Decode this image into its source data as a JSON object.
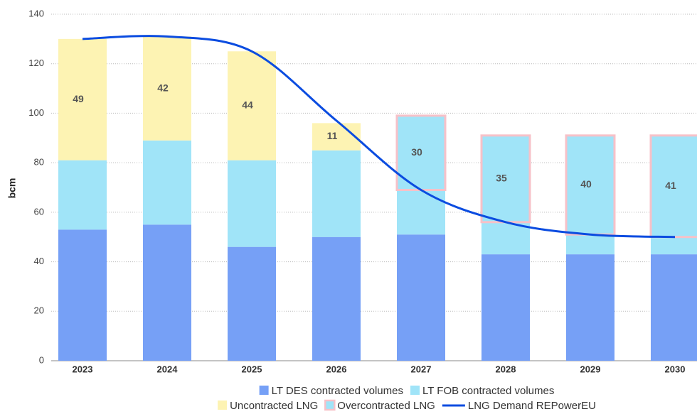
{
  "chart_data": {
    "type": "stacked_bar_line",
    "y_label": "bcm",
    "categories": [
      "2023",
      "2024",
      "2025",
      "2026",
      "2027",
      "2028",
      "2029",
      "2030"
    ],
    "ylim": [
      0,
      140
    ],
    "yticks": [
      0,
      20,
      40,
      60,
      80,
      100,
      120,
      140
    ],
    "grid": true,
    "legend": "bottom",
    "series": [
      {
        "name": "LT DES contracted volumes",
        "type": "bar",
        "color": "#76a0f6",
        "values": [
          53,
          55,
          46,
          50,
          51,
          43,
          43,
          43
        ]
      },
      {
        "name": "LT FOB contracted volumes",
        "type": "bar",
        "color": "#a0e4f8",
        "values": [
          28,
          34,
          35,
          35,
          18,
          13,
          8,
          7
        ]
      },
      {
        "name": "Uncontracted LNG",
        "type": "bar",
        "color": "#fdf3b3",
        "data_labels": true,
        "values": [
          49,
          42,
          44,
          11,
          null,
          null,
          null,
          null
        ]
      },
      {
        "name": "Overcontracted LNG",
        "type": "bar",
        "color": "#a0e4f8",
        "border": "#f7c1c8",
        "data_labels": true,
        "values": [
          null,
          null,
          null,
          null,
          30,
          35,
          40,
          41
        ]
      },
      {
        "name": "LNG Demand REPowerEU",
        "type": "line",
        "color": "#0b4ce0",
        "values": [
          130,
          131,
          125,
          97,
          69,
          56,
          51,
          50
        ]
      }
    ]
  }
}
